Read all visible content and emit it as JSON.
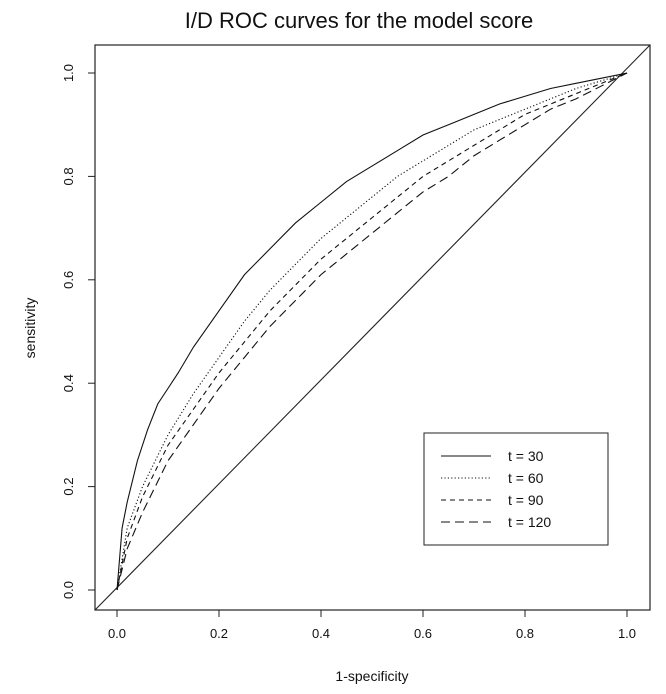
{
  "chart_data": {
    "type": "line",
    "title": "I/D ROC curves for the model score",
    "xlabel": "1-specificity",
    "ylabel": "sensitivity",
    "xlim": [
      0.0,
      1.0
    ],
    "ylim": [
      0.0,
      1.0
    ],
    "xticks": [
      "0.0",
      "0.2",
      "0.4",
      "0.6",
      "0.8",
      "1.0"
    ],
    "yticks": [
      "0.0",
      "0.2",
      "0.4",
      "0.6",
      "0.8",
      "1.0"
    ],
    "grid": false,
    "legend_position": "bottom-right",
    "reference_line": {
      "type": "diagonal",
      "x": [
        0.0,
        1.0
      ],
      "y": [
        0.0,
        1.0
      ]
    },
    "series": [
      {
        "name": "t = 30",
        "line_style": "solid",
        "x": [
          0.0,
          0.01,
          0.02,
          0.04,
          0.06,
          0.08,
          0.1,
          0.12,
          0.15,
          0.2,
          0.25,
          0.3,
          0.35,
          0.4,
          0.45,
          0.5,
          0.55,
          0.6,
          0.65,
          0.7,
          0.75,
          0.8,
          0.85,
          0.9,
          0.95,
          1.0
        ],
        "y": [
          0.0,
          0.12,
          0.17,
          0.25,
          0.31,
          0.36,
          0.39,
          0.42,
          0.47,
          0.54,
          0.61,
          0.66,
          0.71,
          0.75,
          0.79,
          0.82,
          0.85,
          0.88,
          0.9,
          0.92,
          0.94,
          0.955,
          0.97,
          0.98,
          0.99,
          1.0
        ]
      },
      {
        "name": "t = 60",
        "line_style": "dotted",
        "x": [
          0.0,
          0.02,
          0.05,
          0.08,
          0.1,
          0.15,
          0.2,
          0.25,
          0.3,
          0.35,
          0.4,
          0.45,
          0.5,
          0.55,
          0.6,
          0.65,
          0.7,
          0.75,
          0.8,
          0.85,
          0.9,
          0.95,
          1.0
        ],
        "y": [
          0.0,
          0.12,
          0.2,
          0.26,
          0.3,
          0.38,
          0.45,
          0.52,
          0.58,
          0.63,
          0.68,
          0.72,
          0.76,
          0.8,
          0.83,
          0.86,
          0.89,
          0.91,
          0.93,
          0.95,
          0.97,
          0.985,
          1.0
        ]
      },
      {
        "name": "t = 90",
        "line_style": "dashed",
        "x": [
          0.0,
          0.02,
          0.05,
          0.08,
          0.1,
          0.15,
          0.2,
          0.25,
          0.3,
          0.35,
          0.4,
          0.45,
          0.5,
          0.55,
          0.6,
          0.65,
          0.7,
          0.75,
          0.8,
          0.85,
          0.9,
          0.95,
          1.0
        ],
        "y": [
          0.0,
          0.1,
          0.18,
          0.24,
          0.28,
          0.35,
          0.42,
          0.48,
          0.54,
          0.59,
          0.64,
          0.68,
          0.72,
          0.76,
          0.8,
          0.83,
          0.86,
          0.89,
          0.92,
          0.94,
          0.96,
          0.98,
          1.0
        ]
      },
      {
        "name": "t = 120",
        "line_style": "longdash",
        "x": [
          0.0,
          0.02,
          0.05,
          0.08,
          0.1,
          0.15,
          0.2,
          0.25,
          0.3,
          0.35,
          0.4,
          0.45,
          0.5,
          0.55,
          0.6,
          0.65,
          0.7,
          0.75,
          0.8,
          0.85,
          0.9,
          0.95,
          1.0
        ],
        "y": [
          0.0,
          0.08,
          0.15,
          0.21,
          0.25,
          0.32,
          0.39,
          0.45,
          0.51,
          0.56,
          0.61,
          0.65,
          0.69,
          0.73,
          0.77,
          0.8,
          0.84,
          0.87,
          0.9,
          0.93,
          0.95,
          0.975,
          1.0
        ]
      }
    ]
  }
}
